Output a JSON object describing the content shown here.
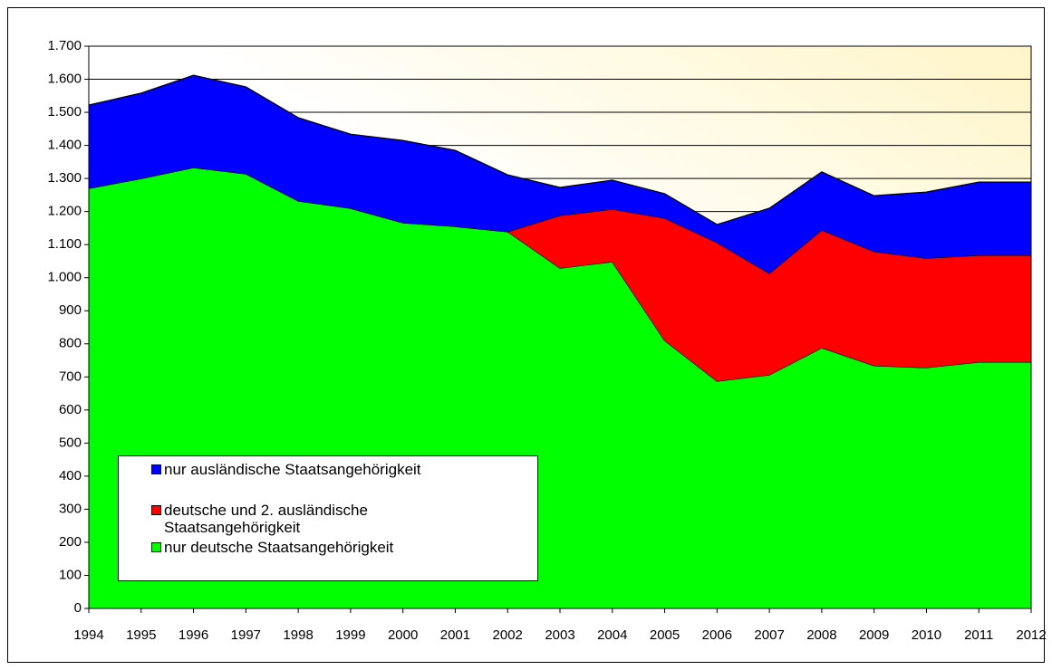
{
  "chart_data": {
    "type": "stacked_area",
    "categories": [
      "1994",
      "1995",
      "1996",
      "1997",
      "1998",
      "1999",
      "2000",
      "2001",
      "2002",
      "2003",
      "2004",
      "2005",
      "2006",
      "2007",
      "2008",
      "2009",
      "2010",
      "2011",
      "2012"
    ],
    "series": [
      {
        "name": "nur deutsche Staatsangehörigkeit",
        "color": "#00ff00",
        "values": [
          1270,
          1300,
          1333,
          1314,
          1232,
          1210,
          1166,
          1155,
          1139,
          1029,
          1048,
          810,
          687,
          706,
          788,
          734,
          728,
          745,
          745
        ]
      },
      {
        "name": "deutsche und 2. ausländische Staatsangehörigkeit",
        "color": "#ff0000",
        "values": [
          0,
          0,
          0,
          0,
          0,
          0,
          0,
          0,
          0,
          159,
          159,
          370,
          419,
          307,
          356,
          345,
          331,
          323,
          323
        ]
      },
      {
        "name": "nur ausländische Staatsangehörigkeit",
        "color": "#0000ff",
        "values": [
          252,
          258,
          279,
          263,
          252,
          224,
          249,
          230,
          172,
          85,
          88,
          74,
          55,
          197,
          176,
          169,
          200,
          221,
          221
        ]
      }
    ],
    "ylim": [
      0,
      1700
    ],
    "yticks": [
      0,
      100,
      200,
      300,
      400,
      500,
      600,
      700,
      800,
      900,
      {
        "value": 1000,
        "label": "1.000"
      },
      {
        "value": 1100,
        "label": "1.100"
      },
      {
        "value": 1200,
        "label": "1.200"
      },
      {
        "value": 1300,
        "label": "1.300"
      },
      {
        "value": 1400,
        "label": "1.400"
      },
      {
        "value": 1500,
        "label": "1.500"
      },
      {
        "value": 1600,
        "label": "1.600"
      },
      {
        "value": 1700,
        "label": "1.700"
      }
    ],
    "grid": true,
    "legend": "bottom-left"
  }
}
